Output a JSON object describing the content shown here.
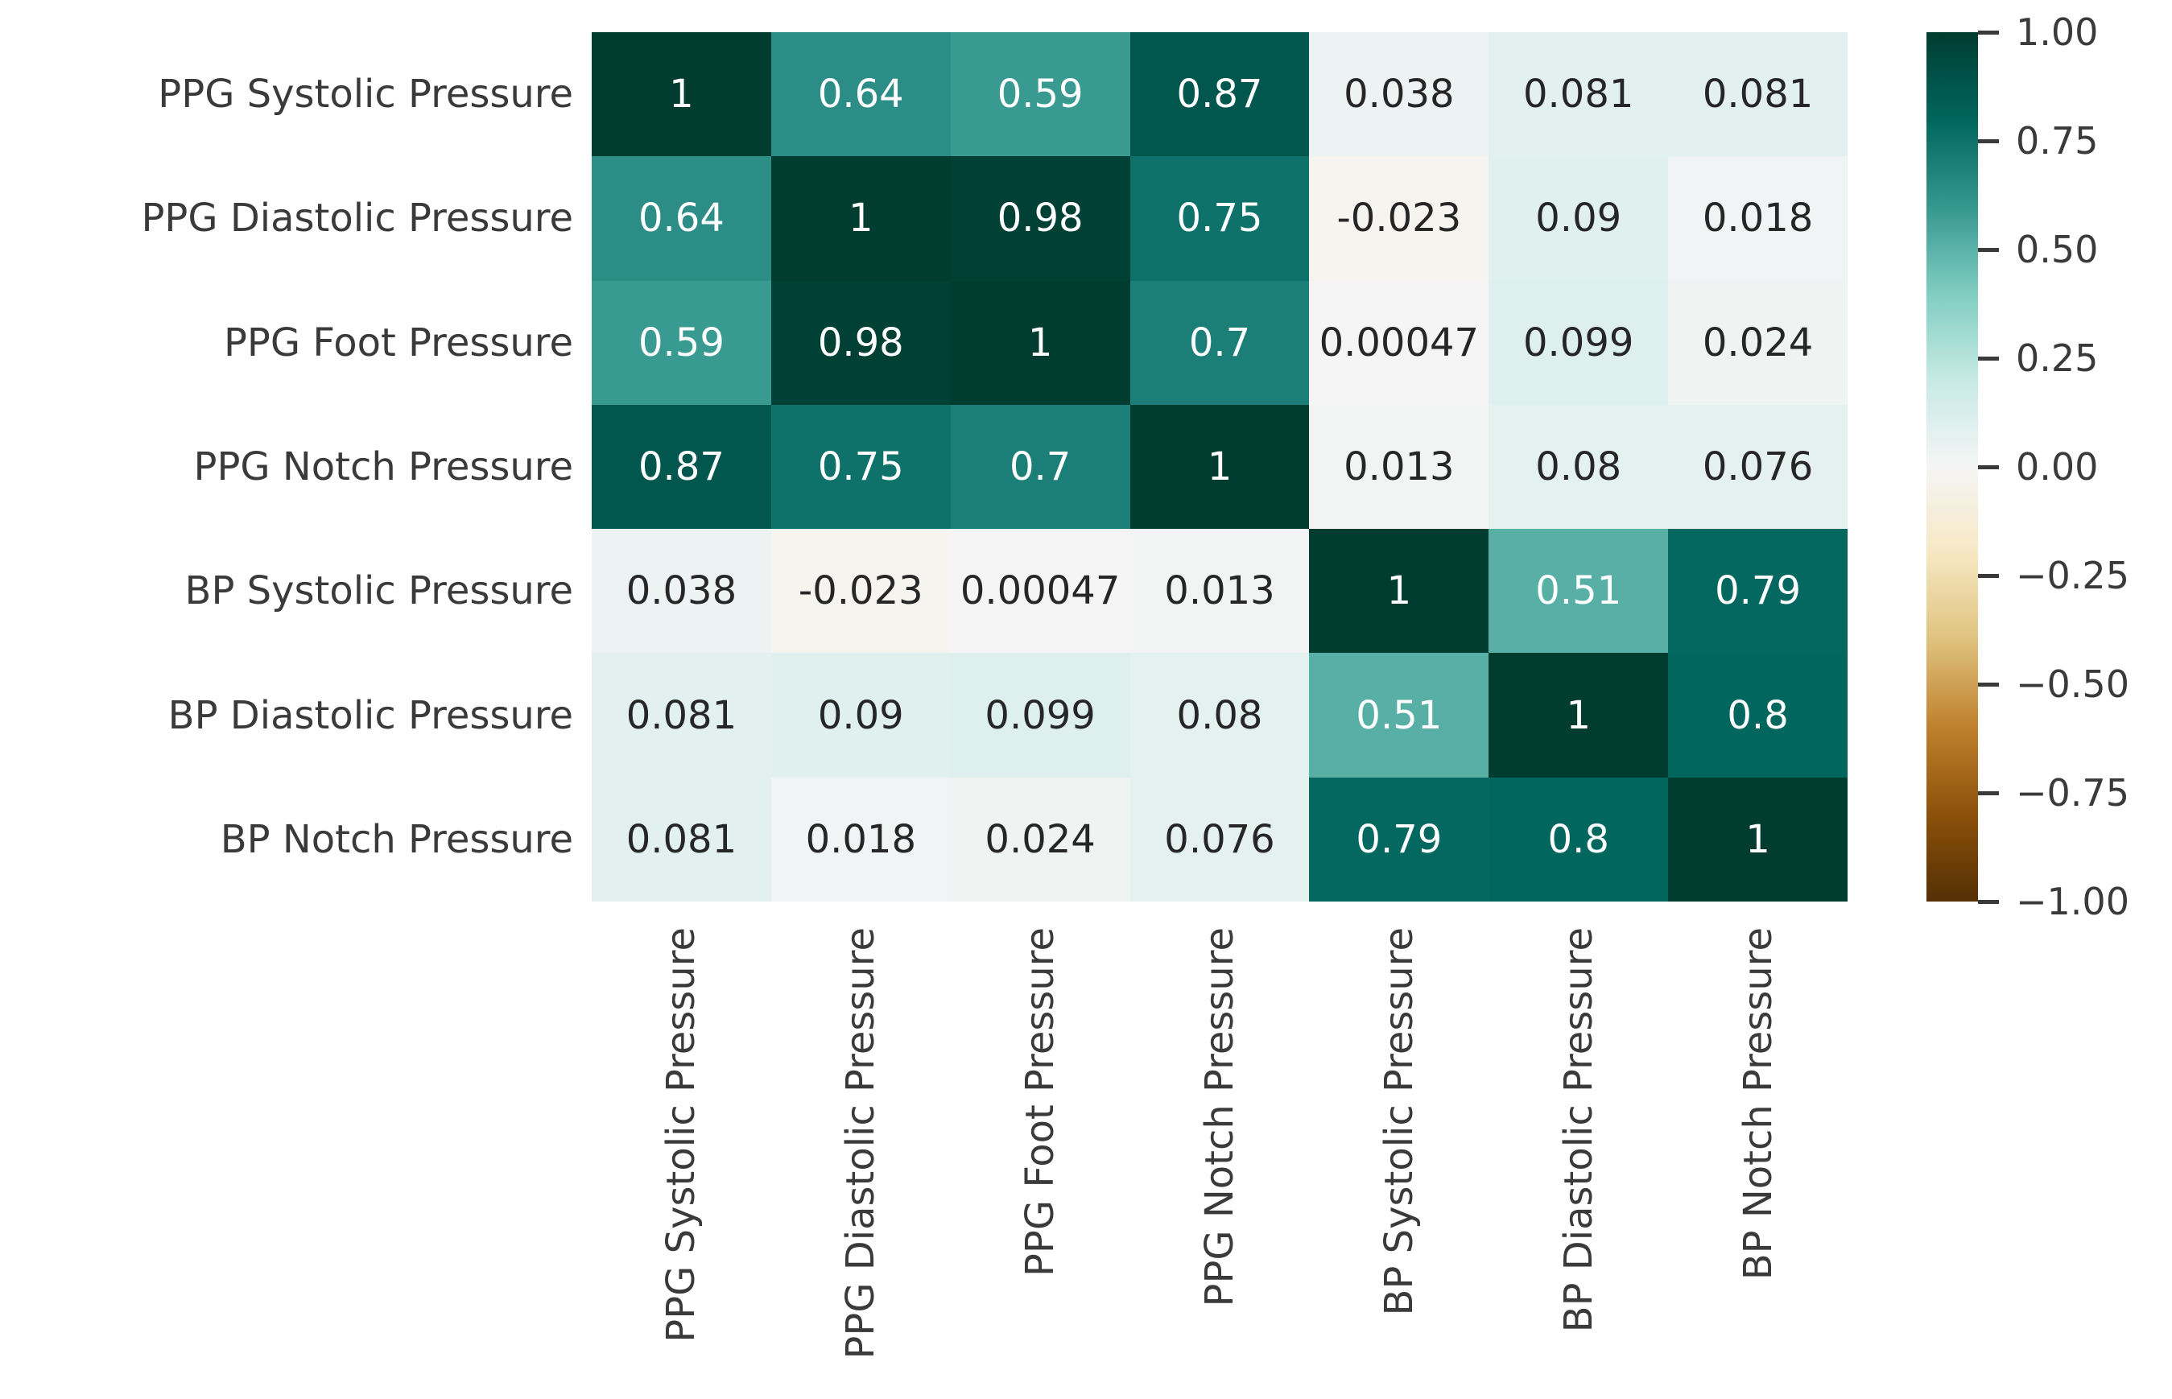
{
  "chart_data": {
    "type": "heatmap",
    "title": "",
    "labels": [
      "PPG Systolic Pressure",
      "PPG Diastolic Pressure",
      "PPG Foot Pressure",
      "PPG Notch Pressure",
      "BP Systolic Pressure",
      "BP Diastolic Pressure",
      "BP Notch Pressure"
    ],
    "matrix_display": [
      [
        "1",
        "0.64",
        "0.59",
        "0.87",
        "0.038",
        "0.081",
        "0.081"
      ],
      [
        "0.64",
        "1",
        "0.98",
        "0.75",
        "-0.023",
        "0.09",
        "0.018"
      ],
      [
        "0.59",
        "0.98",
        "1",
        "0.7",
        "0.00047",
        "0.099",
        "0.024"
      ],
      [
        "0.87",
        "0.75",
        "0.7",
        "1",
        "0.013",
        "0.08",
        "0.076"
      ],
      [
        "0.038",
        "-0.023",
        "0.00047",
        "0.013",
        "1",
        "0.51",
        "0.79"
      ],
      [
        "0.081",
        "0.09",
        "0.099",
        "0.08",
        "0.51",
        "1",
        "0.8"
      ],
      [
        "0.081",
        "0.018",
        "0.024",
        "0.076",
        "0.79",
        "0.8",
        "1"
      ]
    ],
    "matrix_values": [
      [
        1,
        0.64,
        0.59,
        0.87,
        0.038,
        0.081,
        0.081
      ],
      [
        0.64,
        1,
        0.98,
        0.75,
        -0.023,
        0.09,
        0.018
      ],
      [
        0.59,
        0.98,
        1,
        0.7,
        0.00047,
        0.099,
        0.024
      ],
      [
        0.87,
        0.75,
        0.7,
        1,
        0.013,
        0.08,
        0.076
      ],
      [
        0.038,
        -0.023,
        0.00047,
        0.013,
        1,
        0.51,
        0.79
      ],
      [
        0.081,
        0.09,
        0.099,
        0.08,
        0.51,
        1,
        0.8
      ],
      [
        0.081,
        0.018,
        0.024,
        0.076,
        0.79,
        0.8,
        1
      ]
    ],
    "vmin": -1,
    "vmax": 1,
    "colormap": {
      "name": "BrBG",
      "stops": [
        "#543005",
        "#8c510a",
        "#bf812d",
        "#dfc27d",
        "#f6e8c3",
        "#f5f5f5",
        "#c7eae5",
        "#80cdc1",
        "#35978f",
        "#01665e",
        "#003c30"
      ]
    },
    "colorbar": {
      "position": "right",
      "tick_labels": [
        "1.00",
        "0.75",
        "0.50",
        "0.25",
        "0.00",
        "−0.25",
        "−0.50",
        "−0.75",
        "−1.00"
      ],
      "tick_values": [
        1,
        0.75,
        0.5,
        0.25,
        0,
        -0.25,
        -0.5,
        -0.75,
        -1
      ]
    },
    "grid": "off",
    "annotation_light_color": "#ffffff",
    "annotation_dark_color": "#262626",
    "axis_text_color": "#3a3a3a"
  }
}
